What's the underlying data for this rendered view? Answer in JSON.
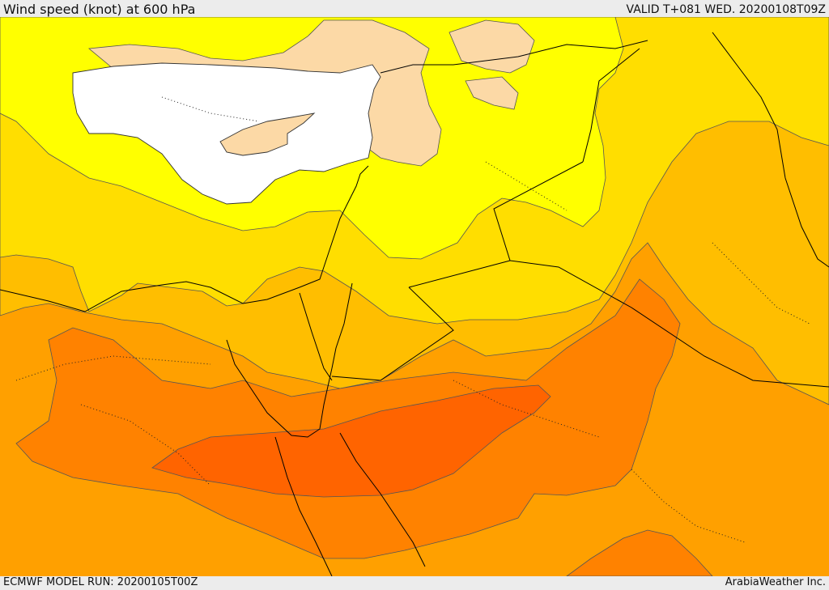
{
  "header": {
    "title": "Wind speed (knot) at 600 hPa",
    "valid": "VALID T+081 WED. 20200108T09Z"
  },
  "footer": {
    "model_run": "ECMWF MODEL RUN: 20200105T00Z",
    "credit": "ArabiaWeather Inc."
  },
  "palette": {
    "sea_white": "#ffffff",
    "band_0_10": "#fcd9a6",
    "band_10_20": "#ffff00",
    "band_20_30": "#ffde00",
    "band_30_40": "#ffbe00",
    "band_40_50": "#ffa000",
    "band_50_60": "#ff8200",
    "band_60_70": "#ff6400",
    "contour_line": "#555555",
    "border_line": "#000000"
  }
}
